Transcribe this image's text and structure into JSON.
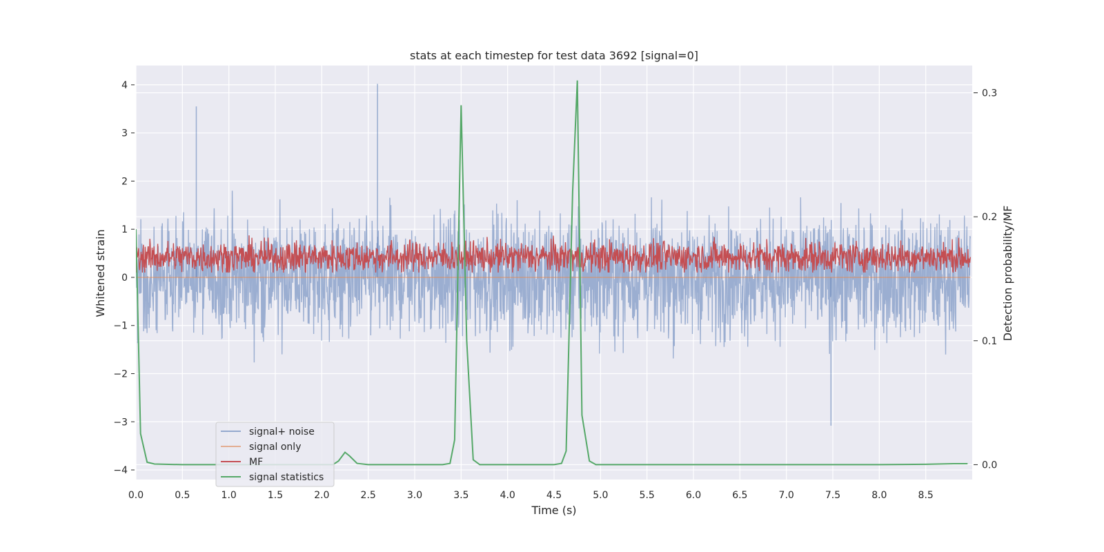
{
  "chart_data": {
    "type": "line",
    "title": "stats at each timestep for test data 3692 [signal=0]",
    "xlabel": "Time (s)",
    "ylabel": "Whitened strain",
    "y2label": "Detection probability/MF",
    "xlim": [
      0,
      9
    ],
    "ylim": [
      -4.2,
      4.4
    ],
    "y2lim": [
      -0.012,
      0.322
    ],
    "xticks": [
      "0.0",
      "0.5",
      "1.0",
      "1.5",
      "2.0",
      "2.5",
      "3.0",
      "3.5",
      "4.0",
      "4.5",
      "5.0",
      "5.5",
      "6.0",
      "6.5",
      "7.0",
      "7.5",
      "8.0",
      "8.5"
    ],
    "xtick_values": [
      0,
      0.5,
      1,
      1.5,
      2,
      2.5,
      3,
      3.5,
      4,
      4.5,
      5,
      5.5,
      6,
      6.5,
      7,
      7.5,
      8,
      8.5
    ],
    "yticks": [
      "−4",
      "−3",
      "−2",
      "−1",
      "0",
      "1",
      "2",
      "3",
      "4"
    ],
    "ytick_values": [
      -4,
      -3,
      -2,
      -1,
      0,
      1,
      2,
      3,
      4
    ],
    "y2ticks": [
      "0.0",
      "0.1",
      "0.2",
      "0.3"
    ],
    "y2tick_values": [
      0,
      0.1,
      0.2,
      0.3
    ],
    "grid": true,
    "legend_position": "lower-left",
    "colors": {
      "signal_noise": "#4c72b0",
      "signal_only": "#dd8452",
      "mf": "#c44e52",
      "signal_statistics": "#55a868",
      "background": "#eaeaf2"
    },
    "series": [
      {
        "name": "signal+ noise",
        "axis": "left",
        "style": "noise",
        "t_range": [
          0,
          8.98
        ],
        "approx_range": [
          -3.4,
          4.0
        ],
        "notable_peaks": [
          [
            0.65,
            3.55
          ],
          [
            2.6,
            4.02
          ],
          [
            7.48,
            -3.08
          ]
        ]
      },
      {
        "name": "signal only",
        "axis": "left",
        "style": "flat",
        "value": 0
      },
      {
        "name": "MF",
        "axis": "right",
        "style": "noise",
        "t_range": [
          0,
          8.98
        ],
        "approx_range": [
          0.155,
          0.195
        ]
      },
      {
        "name": "signal statistics",
        "axis": "right",
        "style": "line",
        "x": [
          0.0,
          0.05,
          0.12,
          0.2,
          0.5,
          1.0,
          1.5,
          2.0,
          2.12,
          2.18,
          2.25,
          2.3,
          2.38,
          2.5,
          3.0,
          3.3,
          3.38,
          3.43,
          3.5,
          3.56,
          3.63,
          3.7,
          4.0,
          4.5,
          4.58,
          4.63,
          4.7,
          4.75,
          4.8,
          4.88,
          4.95,
          5.0,
          6.0,
          7.0,
          7.5,
          8.0,
          8.5,
          8.8,
          8.95
        ],
        "y": [
          0.19,
          0.025,
          0.002,
          0.0005,
          0.0,
          0.0,
          0.0,
          0.0,
          0.0,
          0.003,
          0.01,
          0.007,
          0.001,
          0.0,
          0.0,
          0.0,
          0.001,
          0.02,
          0.29,
          0.1,
          0.004,
          0.0,
          0.0,
          0.0,
          0.001,
          0.011,
          0.22,
          0.31,
          0.04,
          0.003,
          0.0,
          0.0,
          0.0,
          0.0,
          0.0,
          0.0,
          0.0003,
          0.0008,
          0.0008
        ]
      }
    ]
  }
}
